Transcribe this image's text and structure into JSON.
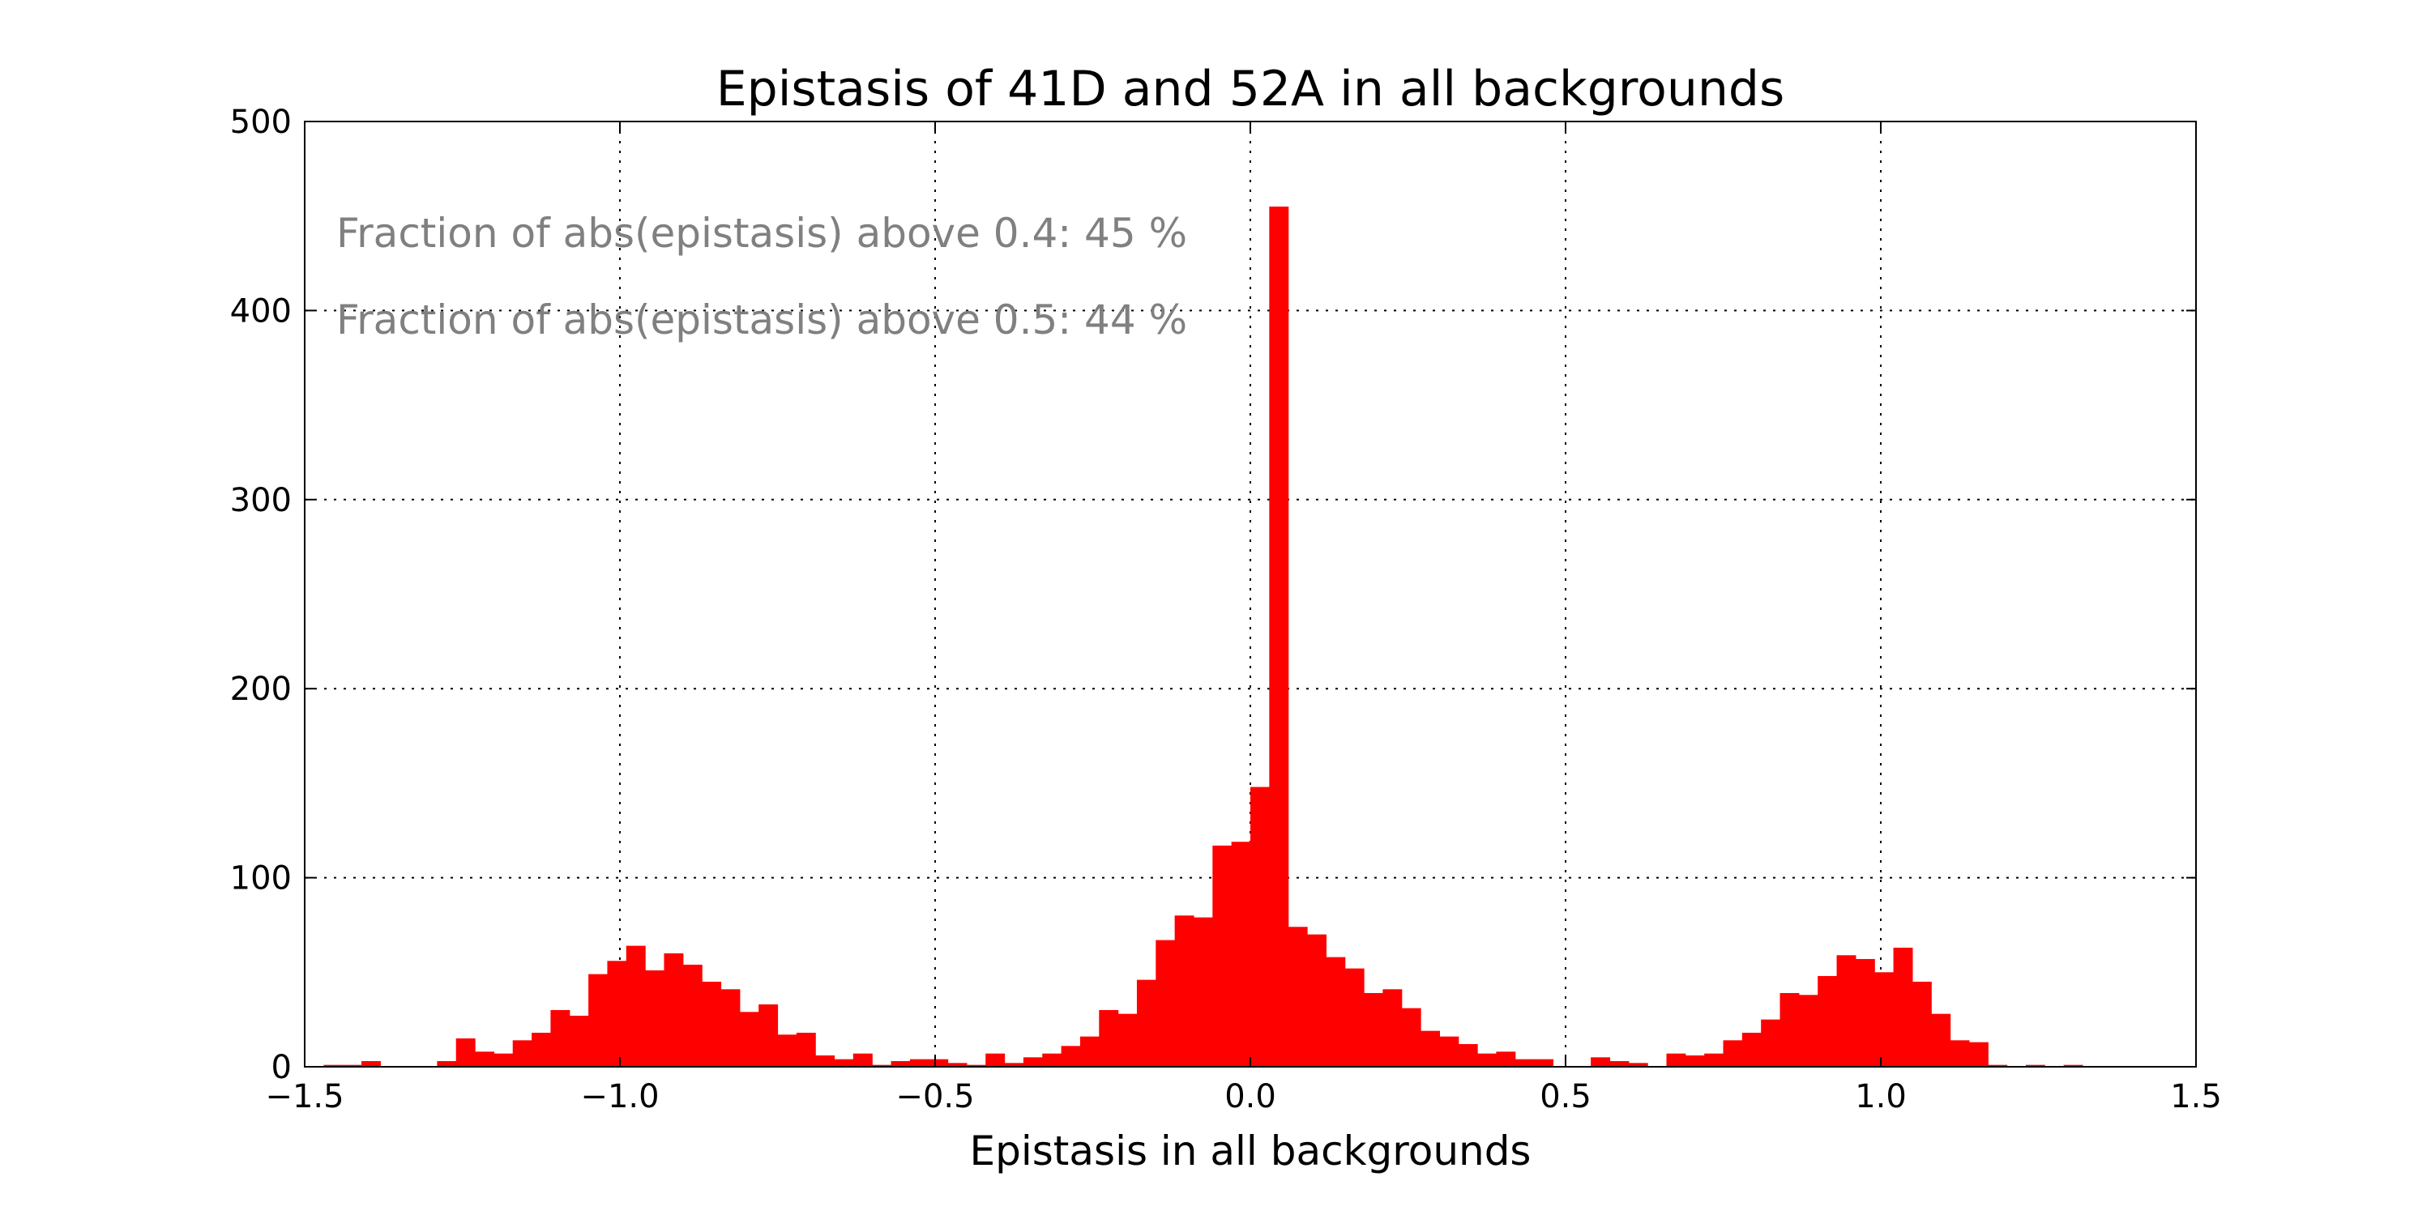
{
  "chart_data": {
    "type": "bar",
    "title": "Epistasis of 41D and 52A in all backgrounds",
    "xlabel": "Epistasis in all backgrounds",
    "ylabel": "",
    "xlim": [
      -1.5,
      1.5
    ],
    "ylim": [
      0,
      500
    ],
    "x_ticks": [
      "−1.5",
      "−1.0",
      "−0.5",
      "0.0",
      "0.5",
      "1.0",
      "1.5"
    ],
    "x_tick_values": [
      -1.5,
      -1.0,
      -0.5,
      0.0,
      0.5,
      1.0,
      1.5
    ],
    "y_ticks": [
      "0",
      "100",
      "200",
      "300",
      "400",
      "500"
    ],
    "y_tick_values": [
      0,
      100,
      200,
      300,
      400,
      500
    ],
    "grid": true,
    "bar_color": "#ff0000",
    "bin_start": -1.5,
    "bin_width": 0.03,
    "values": [
      0,
      1,
      1,
      3,
      0,
      0,
      0,
      3,
      15,
      8,
      7,
      14,
      18,
      30,
      27,
      49,
      56,
      64,
      51,
      60,
      54,
      45,
      41,
      29,
      33,
      17,
      18,
      6,
      4,
      7,
      1,
      3,
      4,
      4,
      2,
      1,
      7,
      2,
      5,
      7,
      11,
      16,
      30,
      28,
      46,
      67,
      80,
      79,
      117,
      119,
      148,
      455,
      74,
      70,
      58,
      52,
      39,
      41,
      31,
      19,
      16,
      12,
      7,
      8,
      4,
      4,
      0,
      0,
      5,
      3,
      2,
      0,
      7,
      6,
      7,
      14,
      18,
      25,
      39,
      38,
      48,
      59,
      57,
      50,
      63,
      45,
      28,
      14,
      13,
      1,
      0,
      1,
      0,
      1,
      0,
      0,
      0,
      0,
      0,
      0
    ],
    "annotations": [
      "Fraction of abs(epistasis) above 0.4: 45 %",
      "Fraction of abs(epistasis) above 0.5: 44 %"
    ]
  }
}
